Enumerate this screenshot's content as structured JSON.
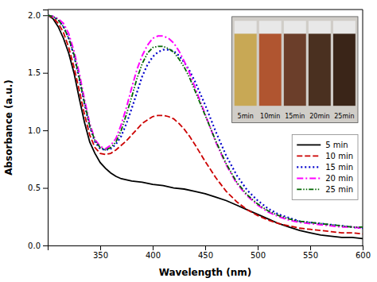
{
  "chart_data": {
    "type": "line",
    "xlabel": "Wavelength (nm)",
    "ylabel": "Absorbance (a.u.)",
    "xlim": [
      300,
      600
    ],
    "ylim": [
      0.0,
      2.05
    ],
    "xticks": [
      350,
      400,
      450,
      500,
      550,
      600
    ],
    "yticks": [
      {
        "value": 0.0,
        "label": "0.0"
      },
      {
        "value": 0.5,
        "label": "0.5"
      },
      {
        "value": 1.0,
        "label": "1.0"
      },
      {
        "value": 1.5,
        "label": "1.5"
      },
      {
        "value": 2.0,
        "label": "2.0"
      }
    ],
    "grid": false,
    "legend": "center right",
    "series": [
      {
        "name": "5 min",
        "color": "#000000",
        "line_style": "solid",
        "x": [
          300,
          305,
          310,
          315,
          320,
          325,
          330,
          335,
          340,
          345,
          350,
          355,
          360,
          365,
          370,
          375,
          380,
          390,
          400,
          410,
          420,
          430,
          440,
          450,
          460,
          470,
          480,
          490,
          500,
          510,
          520,
          530,
          540,
          550,
          560,
          570,
          580,
          590,
          600
        ],
        "values": [
          2.0,
          1.97,
          1.9,
          1.8,
          1.67,
          1.5,
          1.28,
          1.07,
          0.9,
          0.8,
          0.72,
          0.67,
          0.63,
          0.6,
          0.58,
          0.57,
          0.56,
          0.55,
          0.53,
          0.52,
          0.5,
          0.49,
          0.47,
          0.45,
          0.42,
          0.39,
          0.35,
          0.31,
          0.27,
          0.23,
          0.19,
          0.16,
          0.13,
          0.11,
          0.09,
          0.08,
          0.07,
          0.07,
          0.06
        ]
      },
      {
        "name": "10 min",
        "color": "#cc0000",
        "line_style": "dashed",
        "x": [
          300,
          305,
          310,
          315,
          320,
          325,
          330,
          335,
          340,
          345,
          350,
          355,
          360,
          365,
          370,
          375,
          380,
          385,
          390,
          395,
          400,
          405,
          410,
          415,
          420,
          425,
          430,
          435,
          440,
          450,
          460,
          470,
          480,
          490,
          500,
          510,
          520,
          530,
          540,
          550,
          560,
          570,
          580,
          590,
          600
        ],
        "values": [
          2.0,
          1.98,
          1.93,
          1.85,
          1.72,
          1.55,
          1.35,
          1.14,
          0.96,
          0.85,
          0.8,
          0.79,
          0.8,
          0.83,
          0.87,
          0.91,
          0.96,
          1.01,
          1.06,
          1.09,
          1.12,
          1.13,
          1.13,
          1.12,
          1.1,
          1.06,
          1.01,
          0.95,
          0.88,
          0.73,
          0.59,
          0.47,
          0.38,
          0.31,
          0.26,
          0.22,
          0.19,
          0.17,
          0.15,
          0.14,
          0.13,
          0.12,
          0.11,
          0.11,
          0.1
        ]
      },
      {
        "name": "15 min",
        "color": "#0000cc",
        "line_style": "dotted",
        "x": [
          300,
          305,
          310,
          315,
          320,
          325,
          330,
          335,
          340,
          345,
          350,
          355,
          360,
          365,
          370,
          375,
          380,
          385,
          390,
          395,
          400,
          405,
          410,
          415,
          420,
          425,
          430,
          435,
          440,
          450,
          460,
          470,
          480,
          490,
          500,
          510,
          520,
          530,
          540,
          550,
          560,
          570,
          580,
          590,
          600
        ],
        "values": [
          2.0,
          1.99,
          1.96,
          1.9,
          1.8,
          1.65,
          1.45,
          1.23,
          1.03,
          0.9,
          0.84,
          0.83,
          0.84,
          0.88,
          0.95,
          1.06,
          1.19,
          1.33,
          1.47,
          1.57,
          1.64,
          1.68,
          1.7,
          1.7,
          1.69,
          1.65,
          1.59,
          1.52,
          1.43,
          1.22,
          0.99,
          0.78,
          0.61,
          0.48,
          0.39,
          0.32,
          0.27,
          0.24,
          0.21,
          0.2,
          0.19,
          0.18,
          0.17,
          0.16,
          0.15
        ]
      },
      {
        "name": "20 min",
        "color": "#ff00ff",
        "line_style": "dashdot",
        "x": [
          300,
          305,
          310,
          315,
          320,
          325,
          330,
          335,
          340,
          345,
          350,
          355,
          360,
          365,
          370,
          375,
          380,
          385,
          390,
          395,
          400,
          405,
          410,
          415,
          420,
          425,
          430,
          435,
          440,
          450,
          460,
          470,
          480,
          490,
          500,
          510,
          520,
          530,
          540,
          550,
          560,
          570,
          580,
          590,
          600
        ],
        "values": [
          2.0,
          1.99,
          1.97,
          1.93,
          1.84,
          1.69,
          1.5,
          1.27,
          1.06,
          0.92,
          0.86,
          0.84,
          0.87,
          0.93,
          1.05,
          1.2,
          1.37,
          1.53,
          1.65,
          1.74,
          1.8,
          1.82,
          1.82,
          1.8,
          1.76,
          1.69,
          1.6,
          1.5,
          1.38,
          1.14,
          0.9,
          0.7,
          0.54,
          0.43,
          0.35,
          0.29,
          0.25,
          0.22,
          0.2,
          0.19,
          0.18,
          0.17,
          0.16,
          0.16,
          0.15
        ]
      },
      {
        "name": "25 min",
        "color": "#006600",
        "line_style": "dashdotdot",
        "x": [
          300,
          305,
          310,
          315,
          320,
          325,
          330,
          335,
          340,
          345,
          350,
          355,
          360,
          365,
          370,
          375,
          380,
          385,
          390,
          395,
          400,
          405,
          410,
          415,
          420,
          425,
          430,
          435,
          440,
          450,
          460,
          470,
          480,
          490,
          500,
          510,
          520,
          530,
          540,
          550,
          560,
          570,
          580,
          590,
          600
        ],
        "values": [
          2.0,
          1.99,
          1.96,
          1.9,
          1.8,
          1.66,
          1.46,
          1.24,
          1.04,
          0.91,
          0.85,
          0.83,
          0.85,
          0.9,
          1.0,
          1.14,
          1.29,
          1.45,
          1.58,
          1.67,
          1.72,
          1.73,
          1.73,
          1.71,
          1.68,
          1.62,
          1.55,
          1.46,
          1.35,
          1.13,
          0.91,
          0.71,
          0.55,
          0.44,
          0.36,
          0.3,
          0.26,
          0.23,
          0.21,
          0.2,
          0.19,
          0.18,
          0.17,
          0.16,
          0.16
        ]
      }
    ],
    "annotations": [
      {
        "text": "5min",
        "color": "#c8a855"
      },
      {
        "text": "10min",
        "color": "#b05530"
      },
      {
        "text": "15min",
        "color": "#6b3e2a"
      },
      {
        "text": "20min",
        "color": "#4a3020"
      },
      {
        "text": "25min",
        "color": "#3a2518"
      }
    ]
  }
}
